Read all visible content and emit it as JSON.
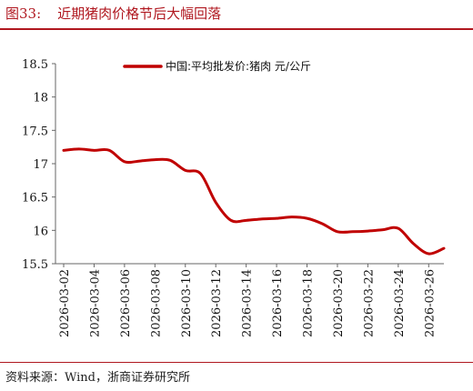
{
  "header": {
    "figure_number": "图33:",
    "title": "近期猪肉价格节后大幅回落"
  },
  "footer": {
    "source": "资料来源：Wind，浙商证券研究所"
  },
  "colors": {
    "accent": "#b0171f",
    "line": "#c00000"
  },
  "chart_data": {
    "type": "line",
    "title": "",
    "xlabel": "",
    "ylabel": "",
    "ylim": [
      15.5,
      18.5
    ],
    "yticks": [
      "15.5",
      "16",
      "16.5",
      "17",
      "17.5",
      "18",
      "18.5"
    ],
    "grid": false,
    "legend_placement": "top",
    "x": [
      "2026-03-02",
      "2026-03-03",
      "2026-03-04",
      "2026-03-05",
      "2026-03-06",
      "2026-03-07",
      "2026-03-08",
      "2026-03-09",
      "2026-03-10",
      "2026-03-11",
      "2026-03-12",
      "2026-03-13",
      "2026-03-14",
      "2026-03-15",
      "2026-03-16",
      "2026-03-17",
      "2026-03-18",
      "2026-03-19",
      "2026-03-20",
      "2026-03-21",
      "2026-03-22",
      "2026-03-23",
      "2026-03-24",
      "2026-03-25",
      "2026-03-26",
      "2026-03-27"
    ],
    "xtick_labels": [
      "2026-03-02",
      "2026-03-04",
      "2026-03-06",
      "2026-03-08",
      "2026-03-10",
      "2026-03-12",
      "2026-03-14",
      "2026-03-16",
      "2026-03-18",
      "2026-03-20",
      "2026-03-22",
      "2026-03-24",
      "2026-03-26"
    ],
    "series": [
      {
        "name": "中国:平均批发价:猪肉 元/公斤",
        "values": [
          17.2,
          17.22,
          17.2,
          17.2,
          17.03,
          17.04,
          17.06,
          17.05,
          16.9,
          16.85,
          16.42,
          16.15,
          16.15,
          16.17,
          16.18,
          16.2,
          16.18,
          16.1,
          15.98,
          15.98,
          15.99,
          16.01,
          16.03,
          15.8,
          15.65,
          15.73
        ]
      }
    ]
  }
}
